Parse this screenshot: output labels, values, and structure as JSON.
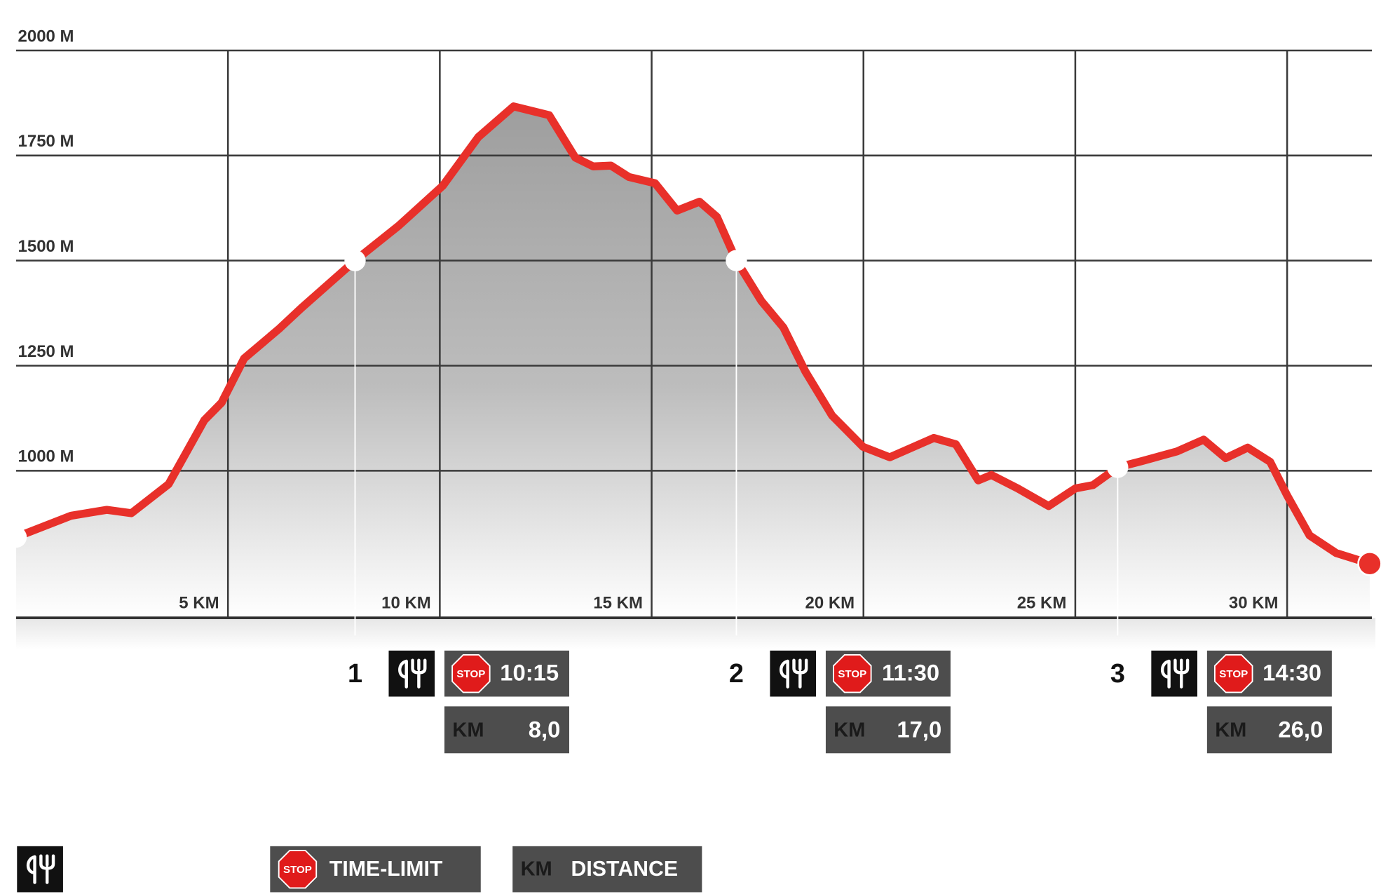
{
  "chart_data": {
    "type": "area",
    "x": [
      0,
      1.3,
      2.14,
      2.72,
      3.6,
      4.44,
      4.85,
      5.38,
      6.2,
      6.73,
      8,
      9.03,
      10.07,
      10.91,
      11.74,
      12.58,
      13.2,
      13.62,
      14.04,
      14.46,
      15.08,
      15.6,
      16.13,
      16.54,
      17,
      17.59,
      18.11,
      18.63,
      19.26,
      19.99,
      20.62,
      21.66,
      22.18,
      22.71,
      23.02,
      23.64,
      24.37,
      25,
      25.42,
      26,
      26.57,
      27.4,
      28.03,
      28.55,
      29.07,
      29.6,
      30,
      30.53,
      31.16,
      31.95
    ],
    "values": [
      842,
      893,
      907,
      899,
      968,
      1120,
      1162,
      1267,
      1337,
      1387,
      1500,
      1583,
      1678,
      1794,
      1867,
      1846,
      1745,
      1724,
      1726,
      1699,
      1684,
      1619,
      1640,
      1604,
      1500,
      1404,
      1341,
      1236,
      1131,
      1057,
      1032,
      1078,
      1063,
      977,
      990,
      958,
      916,
      958,
      966,
      1008,
      1023,
      1046,
      1074,
      1030,
      1055,
      1021,
      941,
      846,
      804,
      779
    ],
    "color": "#e8302a",
    "xlim": [
      0,
      32
    ],
    "ylim": [
      650,
      2000
    ],
    "xticks": [
      {
        "value": 5,
        "label": "5 KM"
      },
      {
        "value": 10,
        "label": "10 KM"
      },
      {
        "value": 15,
        "label": "15 KM"
      },
      {
        "value": 20,
        "label": "20 KM"
      },
      {
        "value": 25,
        "label": "25 KM"
      },
      {
        "value": 30,
        "label": "30 KM"
      }
    ],
    "yticks": [
      {
        "value": 1000,
        "label": "1000 M"
      },
      {
        "value": 1250,
        "label": "1250 M"
      },
      {
        "value": 1500,
        "label": "1500 M"
      },
      {
        "value": 1750,
        "label": "1750 M"
      },
      {
        "value": 2000,
        "label": "2000 M"
      }
    ],
    "grid": true,
    "stations": [
      {
        "number": "1",
        "km": 8,
        "time": "10:15",
        "km_label": "8,0"
      },
      {
        "number": "2",
        "km": 17,
        "time": "11:30",
        "km_label": "17,0"
      },
      {
        "number": "3",
        "km": 26,
        "time": "14:30",
        "km_label": "26,0"
      }
    ],
    "legend": {
      "stop": "STOP",
      "time_limit": "TIME-LIMIT",
      "km": "KM",
      "distance": "DISTANCE"
    }
  }
}
